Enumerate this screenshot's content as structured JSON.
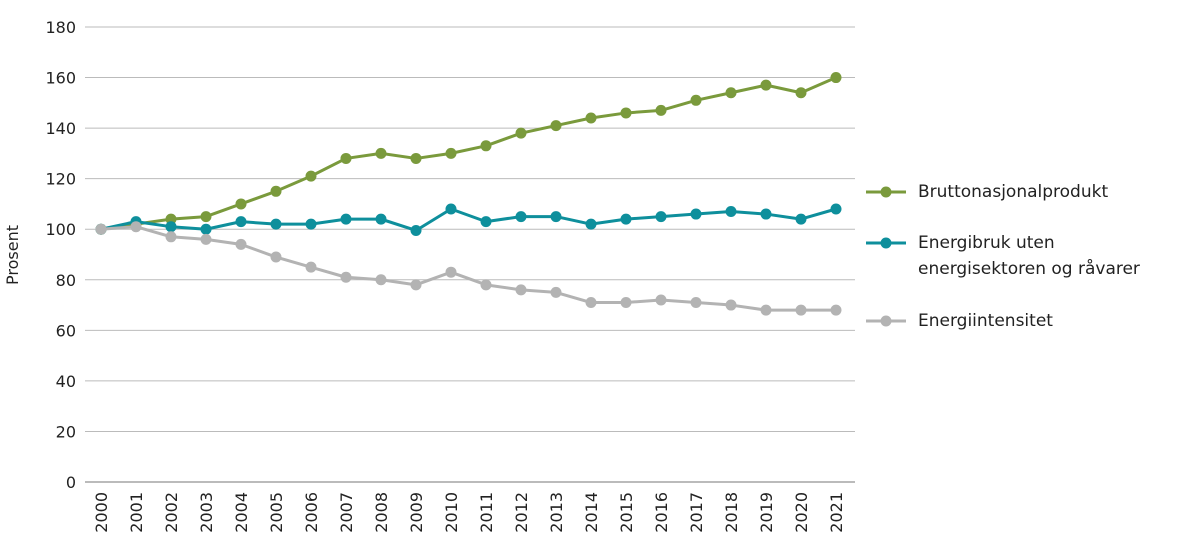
{
  "chart_data": {
    "type": "line",
    "y_label": "Prosent",
    "categories": [
      "2000",
      "2001",
      "2002",
      "2003",
      "2004",
      "2005",
      "2006",
      "2007",
      "2008",
      "2009",
      "2010",
      "2011",
      "2012",
      "2013",
      "2014",
      "2015",
      "2016",
      "2017",
      "2018",
      "2019",
      "2020",
      "2021"
    ],
    "series": [
      {
        "name": "Bruttonasjonalprodukt",
        "color": "#7a9a3c",
        "values": [
          100,
          102,
          104,
          105,
          110,
          115,
          121,
          128,
          130,
          128,
          130,
          133,
          138,
          141,
          144,
          146,
          147,
          151,
          154,
          157,
          154,
          160
        ]
      },
      {
        "name": "Energibruk uten energisektoren og råvarer",
        "color": "#0e8f9c",
        "values": [
          100,
          103,
          101,
          100,
          103,
          102,
          102,
          104,
          104,
          99.5,
          108,
          103,
          105,
          105,
          102,
          104,
          105,
          106,
          107,
          106,
          104,
          108
        ]
      },
      {
        "name": "Energiintensitet",
        "color": "#b3b3b3",
        "values": [
          100,
          101,
          97,
          96,
          94,
          89,
          85,
          81,
          80,
          78,
          83,
          78,
          76,
          75,
          71,
          71,
          72,
          71,
          70,
          68,
          68,
          68
        ]
      }
    ],
    "ylim": [
      0,
      180
    ],
    "yticks": [
      0,
      20,
      40,
      60,
      80,
      100,
      120,
      140,
      160,
      180
    ],
    "grid": true,
    "legend": "right"
  }
}
